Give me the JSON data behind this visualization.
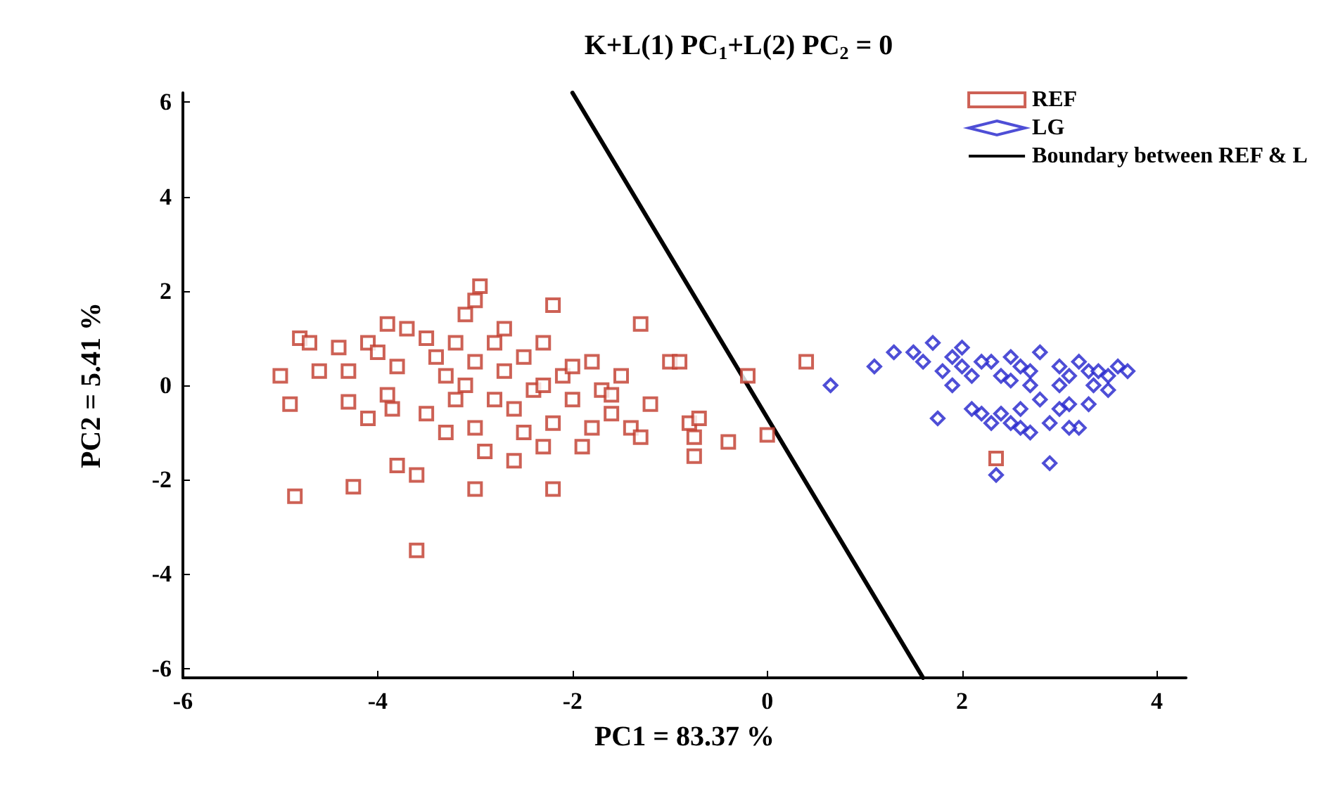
{
  "chart_data": {
    "type": "scatter",
    "title": "K+L(1) PC$_{1}$+L(2) PC$_{2}$ = 0",
    "xlabel": "PC1 = 83.37 %",
    "ylabel": "PC2 = 5.41 %",
    "xlim": [
      -6,
      4.3
    ],
    "ylim": [
      -6.2,
      6.2
    ],
    "xticks": [
      -6,
      -4,
      -2,
      0,
      2,
      4
    ],
    "yticks": [
      -6,
      -4,
      -2,
      0,
      2,
      4,
      6
    ],
    "grid": false,
    "legend": "top right",
    "series": [
      {
        "name": "REF",
        "color": "#c0392b",
        "marker": "square",
        "x": [
          -5.0,
          -4.8,
          -4.9,
          -4.85,
          -4.6,
          -4.7,
          -4.4,
          -4.3,
          -4.25,
          -4.3,
          -4.1,
          -4.0,
          -3.9,
          -3.8,
          -3.85,
          -3.8,
          -3.6,
          -3.6,
          -3.7,
          -3.5,
          -3.4,
          -3.3,
          -3.2,
          -3.1,
          -3.0,
          -3.0,
          -2.95,
          -3.0,
          -2.9,
          -3.0,
          -2.8,
          -2.7,
          -2.6,
          -2.6,
          -2.5,
          -2.4,
          -2.3,
          -2.2,
          -2.2,
          -2.2,
          -2.1,
          -2.0,
          -1.9,
          -1.8,
          -1.7,
          -1.6,
          -1.5,
          -1.4,
          -1.3,
          -1.3,
          -1.2,
          -1.0,
          -0.9,
          -0.8,
          -0.75,
          -0.7,
          -0.75,
          -0.4,
          -0.2,
          0.0,
          0.4,
          2.35,
          -3.3,
          -3.5,
          -2.8,
          -3.2,
          -2.5,
          -1.8,
          -2.3,
          -3.9,
          -4.1,
          -2.7,
          -3.1,
          -2.3,
          -2.0,
          -1.6
        ],
        "values": [
          0.2,
          1.0,
          -0.4,
          -2.35,
          0.3,
          0.9,
          0.8,
          0.3,
          -2.15,
          -0.35,
          0.9,
          0.7,
          1.3,
          0.4,
          -0.5,
          -1.7,
          -1.9,
          -3.5,
          1.2,
          1.0,
          0.6,
          0.2,
          -0.3,
          0.0,
          0.5,
          1.8,
          2.1,
          -0.9,
          -1.4,
          -2.2,
          0.9,
          0.3,
          -0.5,
          -1.6,
          0.6,
          -0.1,
          0.9,
          1.7,
          -2.2,
          -0.8,
          0.2,
          -0.3,
          -1.3,
          0.5,
          -0.1,
          -0.6,
          0.2,
          -0.9,
          1.3,
          -1.1,
          -0.4,
          0.5,
          0.5,
          -0.8,
          -1.1,
          -0.7,
          -1.5,
          -1.2,
          0.2,
          -1.05,
          0.5,
          -1.55,
          -1.0,
          -0.6,
          -0.3,
          0.9,
          -1.0,
          -0.9,
          -1.3,
          -0.2,
          -0.7,
          1.2,
          1.5,
          0.0,
          0.4,
          -0.2
        ]
      },
      {
        "name": "LG",
        "color": "#2222cc",
        "marker": "diamond",
        "x": [
          0.65,
          1.1,
          1.3,
          1.5,
          1.6,
          1.7,
          1.8,
          1.75,
          1.9,
          2.0,
          2.1,
          2.2,
          2.3,
          2.35,
          2.3,
          2.4,
          2.5,
          2.5,
          2.6,
          2.7,
          2.7,
          2.8,
          2.8,
          2.9,
          2.9,
          3.0,
          3.0,
          3.1,
          3.1,
          3.2,
          3.2,
          3.3,
          3.35,
          3.4,
          3.5,
          3.6,
          3.5,
          3.7,
          2.0,
          2.2,
          2.4,
          2.6,
          2.1,
          3.0,
          3.3,
          2.5,
          1.9,
          2.7,
          3.1,
          2.6
        ],
        "values": [
          0.0,
          0.4,
          0.7,
          0.7,
          0.5,
          0.9,
          0.3,
          -0.7,
          0.6,
          0.8,
          0.2,
          -0.6,
          -0.8,
          -1.9,
          0.5,
          0.2,
          0.6,
          -0.8,
          -0.5,
          0.3,
          -1.0,
          0.7,
          -0.3,
          -0.8,
          -1.65,
          0.4,
          0.0,
          0.2,
          -0.4,
          0.5,
          -0.9,
          0.3,
          0.0,
          0.3,
          0.2,
          0.4,
          -0.1,
          0.3,
          0.4,
          0.5,
          -0.6,
          -0.9,
          -0.5,
          -0.5,
          -0.4,
          0.1,
          0.0,
          0.0,
          -0.9,
          0.4
        ]
      },
      {
        "name": "Boundary between REF & L",
        "type": "line",
        "color": "#000000",
        "marker": "none",
        "line_style": "solid",
        "x": [
          -2.0,
          1.6
        ],
        "values": [
          6.2,
          -6.2
        ]
      }
    ]
  }
}
